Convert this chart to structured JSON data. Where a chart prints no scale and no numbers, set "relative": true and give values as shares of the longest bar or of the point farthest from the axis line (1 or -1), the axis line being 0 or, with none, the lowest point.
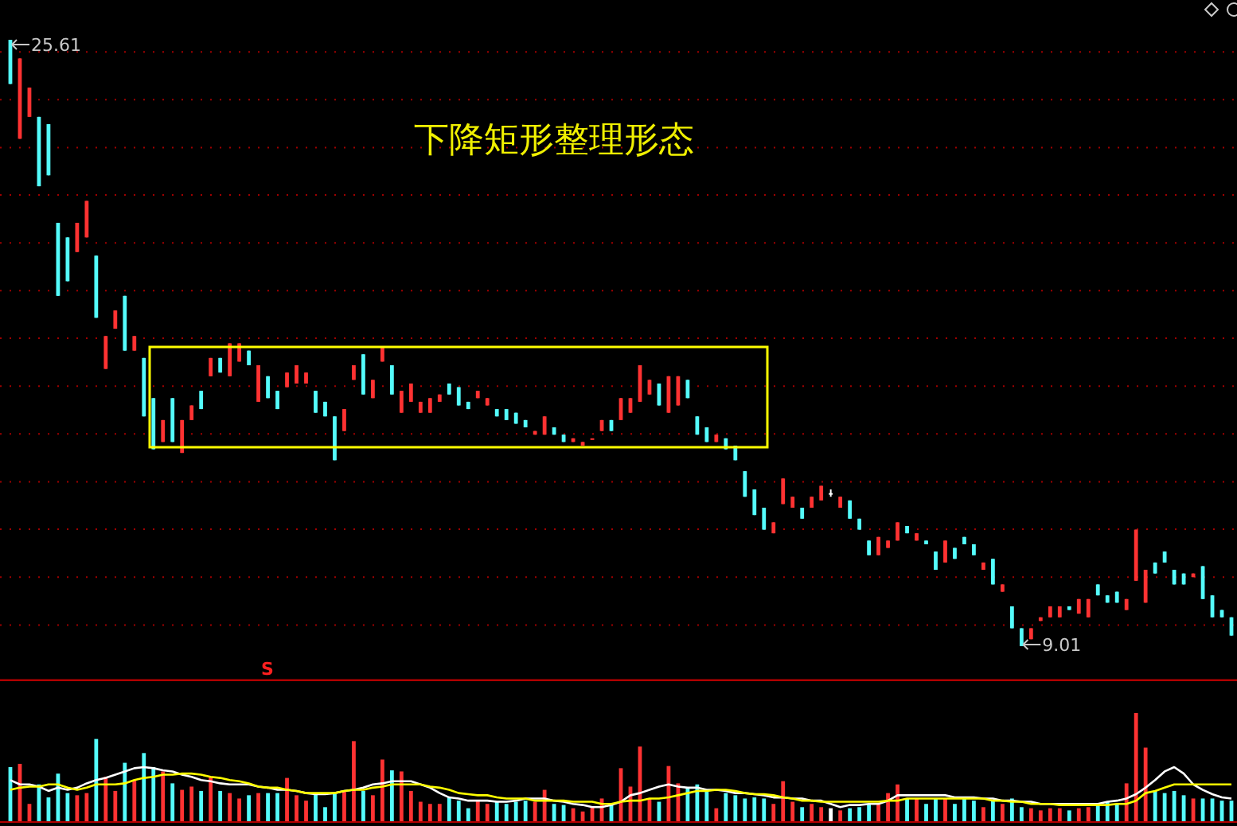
{
  "chart_data": [
    {
      "type": "candlestick",
      "title": "下降矩形整理形态",
      "categories": [
        null,
        null,
        null,
        null,
        null,
        null,
        null,
        null,
        null,
        null,
        null,
        null,
        null,
        null,
        null,
        null,
        null,
        null,
        null,
        null,
        null,
        null,
        null,
        null,
        null,
        null,
        null,
        null,
        null,
        null,
        null,
        null,
        null,
        null,
        null,
        null,
        null,
        null,
        null,
        null,
        null,
        null,
        null,
        null,
        null,
        null,
        null,
        null,
        null,
        null,
        null,
        null,
        null,
        null,
        null,
        null,
        null,
        null,
        null,
        null,
        null,
        null,
        null,
        null,
        null,
        null,
        null,
        null,
        null,
        null,
        null,
        null,
        null,
        null,
        null,
        null,
        null,
        null,
        null,
        null,
        null,
        null,
        null,
        null,
        null,
        null,
        null,
        null,
        null,
        null,
        null,
        null,
        null,
        null,
        null,
        null,
        null,
        null,
        null,
        null,
        null,
        null,
        null,
        null,
        null,
        null,
        null,
        null,
        null,
        null,
        null,
        null,
        null,
        null,
        null,
        null,
        null,
        null,
        null,
        null,
        null,
        null,
        null,
        null,
        null,
        null,
        null,
        null,
        null
      ],
      "ohlc": [
        [
          25.61,
          25.61,
          24.4,
          24.4
        ],
        [
          22.9,
          25.1,
          22.9,
          25.1
        ],
        [
          23.5,
          24.3,
          23.5,
          24.3
        ],
        [
          23.5,
          23.5,
          21.6,
          21.6
        ],
        [
          23.3,
          23.3,
          21.9,
          21.9
        ],
        [
          20.6,
          20.6,
          18.6,
          18.6
        ],
        [
          20.2,
          20.2,
          19.0,
          19.0
        ],
        [
          19.8,
          20.6,
          19.8,
          20.6
        ],
        [
          20.2,
          21.2,
          20.2,
          21.2
        ],
        [
          19.7,
          19.7,
          18.0,
          18.0
        ],
        [
          16.6,
          17.5,
          16.6,
          17.5
        ],
        [
          17.7,
          18.2,
          17.7,
          18.2
        ],
        [
          18.6,
          18.6,
          17.1,
          17.1
        ],
        [
          17.1,
          17.5,
          17.1,
          17.5
        ],
        [
          16.9,
          16.9,
          15.3,
          15.3
        ],
        [
          15.8,
          15.8,
          14.4,
          14.4
        ],
        [
          14.6,
          15.2,
          14.6,
          15.2
        ],
        [
          15.8,
          15.8,
          14.6,
          14.6
        ],
        [
          14.3,
          15.2,
          14.3,
          15.2
        ],
        [
          15.2,
          15.6,
          15.2,
          15.6
        ],
        [
          16.0,
          16.0,
          15.5,
          15.5
        ],
        [
          16.4,
          16.9,
          16.4,
          16.9
        ],
        [
          16.9,
          16.9,
          16.5,
          16.5
        ],
        [
          16.4,
          17.3,
          16.4,
          17.3
        ],
        [
          16.8,
          17.3,
          16.8,
          17.3
        ],
        [
          17.1,
          17.1,
          16.7,
          16.7
        ],
        [
          15.7,
          16.7,
          15.7,
          16.7
        ],
        [
          16.4,
          16.4,
          15.8,
          15.8
        ],
        [
          16.0,
          16.0,
          15.5,
          15.5
        ],
        [
          16.1,
          16.5,
          16.1,
          16.5
        ],
        [
          16.2,
          16.7,
          16.2,
          16.7
        ],
        [
          16.2,
          16.5,
          16.2,
          16.5
        ],
        [
          16.0,
          16.0,
          15.4,
          15.4
        ],
        [
          15.7,
          15.7,
          15.3,
          15.3
        ],
        [
          15.3,
          15.3,
          14.1,
          14.1
        ],
        [
          14.9,
          15.5,
          14.9,
          15.5
        ],
        [
          16.3,
          16.7,
          16.3,
          16.7
        ],
        [
          17.0,
          17.0,
          15.9,
          15.9
        ],
        [
          15.8,
          16.3,
          15.8,
          16.3
        ],
        [
          16.8,
          17.2,
          16.8,
          17.2
        ],
        [
          16.7,
          16.7,
          15.9,
          15.9
        ],
        [
          15.4,
          16.0,
          15.4,
          16.0
        ],
        [
          15.7,
          16.2,
          15.7,
          16.2
        ],
        [
          15.4,
          15.7,
          15.4,
          15.7
        ],
        [
          15.4,
          15.8,
          15.4,
          15.8
        ],
        [
          15.7,
          15.9,
          15.7,
          15.9
        ],
        [
          16.2,
          16.2,
          15.9,
          15.9
        ],
        [
          16.1,
          16.1,
          15.6,
          15.6
        ],
        [
          15.7,
          15.7,
          15.5,
          15.5
        ],
        [
          15.8,
          16.0,
          15.8,
          16.0
        ],
        [
          15.6,
          15.8,
          15.6,
          15.8
        ],
        [
          15.5,
          15.5,
          15.3,
          15.3
        ],
        [
          15.5,
          15.5,
          15.2,
          15.2
        ],
        [
          15.4,
          15.4,
          15.1,
          15.1
        ],
        [
          15.2,
          15.2,
          15.0,
          15.0
        ],
        [
          14.8,
          14.9,
          14.8,
          14.9
        ],
        [
          14.8,
          15.3,
          14.8,
          15.3
        ],
        [
          15.0,
          15.0,
          14.8,
          14.8
        ],
        [
          14.8,
          14.8,
          14.6,
          14.6
        ],
        [
          14.6,
          14.7,
          14.6,
          14.7
        ],
        [
          14.5,
          14.6,
          14.5,
          14.6
        ],
        [
          14.7,
          14.7,
          14.7,
          14.7
        ],
        [
          14.9,
          15.2,
          14.9,
          15.2
        ],
        [
          15.2,
          15.2,
          14.9,
          14.9
        ],
        [
          15.2,
          15.8,
          15.2,
          15.8
        ],
        [
          15.4,
          15.8,
          15.4,
          15.8
        ],
        [
          15.7,
          16.7,
          15.7,
          16.7
        ],
        [
          15.9,
          16.3,
          15.9,
          16.3
        ],
        [
          16.2,
          16.2,
          15.6,
          15.6
        ],
        [
          15.4,
          16.4,
          15.4,
          16.4
        ],
        [
          15.6,
          16.4,
          15.6,
          16.4
        ],
        [
          16.3,
          16.3,
          15.8,
          15.8
        ],
        [
          15.3,
          15.3,
          14.8,
          14.8
        ],
        [
          15.0,
          15.0,
          14.6,
          14.6
        ],
        [
          14.6,
          14.8,
          14.6,
          14.8
        ],
        [
          14.7,
          14.7,
          14.4,
          14.4
        ],
        [
          14.5,
          14.5,
          14.1,
          14.1
        ],
        [
          13.8,
          13.8,
          13.1,
          13.1
        ],
        [
          13.3,
          13.3,
          12.6,
          12.6
        ],
        [
          12.8,
          12.8,
          12.2,
          12.2
        ],
        [
          12.1,
          12.4,
          12.1,
          12.4
        ],
        [
          12.9,
          13.6,
          12.9,
          13.6
        ],
        [
          12.8,
          13.1,
          12.8,
          13.1
        ],
        [
          12.8,
          12.8,
          12.5,
          12.5
        ],
        [
          12.8,
          13.1,
          12.8,
          13.1
        ],
        [
          13.0,
          13.4,
          13.0,
          13.4
        ],
        [
          13.2,
          13.3,
          13.1,
          13.2
        ],
        [
          12.8,
          13.1,
          12.8,
          13.1
        ],
        [
          13.0,
          13.0,
          12.5,
          12.5
        ],
        [
          12.5,
          12.5,
          12.2,
          12.2
        ],
        [
          11.9,
          11.9,
          11.5,
          11.5
        ],
        [
          11.5,
          12.0,
          11.5,
          12.0
        ],
        [
          11.7,
          11.9,
          11.7,
          11.9
        ],
        [
          11.9,
          12.4,
          11.9,
          12.4
        ],
        [
          12.3,
          12.3,
          12.1,
          12.1
        ],
        [
          11.9,
          12.1,
          11.9,
          12.1
        ],
        [
          11.9,
          11.9,
          11.8,
          11.8
        ],
        [
          11.6,
          11.6,
          11.1,
          11.1
        ],
        [
          11.3,
          11.9,
          11.3,
          11.9
        ],
        [
          11.7,
          11.7,
          11.4,
          11.4
        ],
        [
          12.0,
          12.0,
          11.8,
          11.8
        ],
        [
          11.8,
          11.8,
          11.5,
          11.5
        ],
        [
          11.1,
          11.3,
          11.1,
          11.3
        ],
        [
          11.4,
          11.4,
          10.7,
          10.7
        ],
        [
          10.5,
          10.7,
          10.5,
          10.7
        ],
        [
          10.1,
          10.1,
          9.5,
          9.5
        ],
        [
          9.5,
          9.5,
          9.01,
          9.01
        ],
        [
          9.2,
          9.5,
          9.2,
          9.5
        ],
        [
          9.7,
          9.8,
          9.7,
          9.8
        ],
        [
          9.8,
          10.1,
          9.8,
          10.1
        ],
        [
          9.8,
          10.1,
          9.8,
          10.1
        ],
        [
          10.1,
          10.1,
          10.0,
          10.0
        ],
        [
          9.9,
          10.3,
          9.9,
          10.3
        ],
        [
          9.8,
          10.3,
          9.8,
          10.3
        ],
        [
          10.7,
          10.7,
          10.4,
          10.4
        ],
        [
          10.4,
          10.4,
          10.2,
          10.2
        ],
        [
          10.5,
          10.5,
          10.2,
          10.2
        ],
        [
          10.0,
          10.3,
          10.0,
          10.3
        ],
        [
          10.8,
          12.2,
          10.8,
          12.2
        ],
        [
          10.2,
          11.1,
          10.2,
          11.1
        ],
        [
          11.3,
          11.3,
          11.0,
          11.0
        ],
        [
          11.6,
          11.6,
          11.3,
          11.3
        ],
        [
          11.1,
          11.1,
          10.7,
          10.7
        ],
        [
          11.0,
          11.0,
          10.7,
          10.7
        ],
        [
          10.9,
          11.0,
          10.9,
          11.0
        ],
        [
          11.2,
          11.2,
          10.3,
          10.3
        ],
        [
          10.4,
          10.4,
          9.8,
          9.8
        ],
        [
          10.0,
          10.0,
          9.8,
          9.8
        ],
        [
          9.8,
          9.8,
          9.3,
          9.3
        ]
      ],
      "colors": [
        "#54fcfc",
        "#ff3232",
        "#ff3232",
        "#54fcfc",
        "#54fcfc",
        "#54fcfc",
        "#54fcfc",
        "#ff3232",
        "#ff3232",
        "#54fcfc",
        "#ff3232",
        "#ff3232",
        "#54fcfc",
        "#ff3232",
        "#54fcfc",
        "#54fcfc",
        "#ff3232",
        "#54fcfc",
        "#ff3232",
        "#ff3232",
        "#54fcfc",
        "#ff3232",
        "#54fcfc",
        "#ff3232",
        "#ff3232",
        "#54fcfc",
        "#ff3232",
        "#54fcfc",
        "#54fcfc",
        "#ff3232",
        "#ff3232",
        "#ff3232",
        "#54fcfc",
        "#54fcfc",
        "#54fcfc",
        "#ff3232",
        "#ff3232",
        "#54fcfc",
        "#ff3232",
        "#ff3232",
        "#54fcfc",
        "#ff3232",
        "#ff3232",
        "#ff3232",
        "#ff3232",
        "#ff3232",
        "#54fcfc",
        "#54fcfc",
        "#54fcfc",
        "#ff3232",
        "#ff3232",
        "#54fcfc",
        "#54fcfc",
        "#54fcfc",
        "#54fcfc",
        "#ff3232",
        "#ff3232",
        "#54fcfc",
        "#54fcfc",
        "#ff3232",
        "#ff3232",
        "#ff3232",
        "#ff3232",
        "#54fcfc",
        "#ff3232",
        "#ff3232",
        "#ff3232",
        "#ff3232",
        "#54fcfc",
        "#ff3232",
        "#ff3232",
        "#54fcfc",
        "#54fcfc",
        "#54fcfc",
        "#ff3232",
        "#54fcfc",
        "#54fcfc",
        "#54fcfc",
        "#54fcfc",
        "#54fcfc",
        "#ff3232",
        "#ff3232",
        "#ff3232",
        "#54fcfc",
        "#ff3232",
        "#ff3232",
        "#ffffff",
        "#ff3232",
        "#54fcfc",
        "#54fcfc",
        "#54fcfc",
        "#ff3232",
        "#ff3232",
        "#ff3232",
        "#54fcfc",
        "#ff3232",
        "#54fcfc",
        "#54fcfc",
        "#ff3232",
        "#54fcfc",
        "#54fcfc",
        "#54fcfc",
        "#ff3232",
        "#54fcfc",
        "#ff3232",
        "#54fcfc",
        "#54fcfc",
        "#ff3232",
        "#ff3232",
        "#ff3232",
        "#ff3232",
        "#54fcfc",
        "#ff3232",
        "#ff3232",
        "#54fcfc",
        "#54fcfc",
        "#54fcfc",
        "#ff3232",
        "#ff3232",
        "#ff3232",
        "#54fcfc",
        "#54fcfc",
        "#54fcfc",
        "#54fcfc",
        "#ff3232",
        "#54fcfc",
        "#54fcfc",
        "#54fcfc",
        "#54fcfc"
      ],
      "yticks": [
        {
          "value": 25.28,
          "label": null
        },
        {
          "value": 23.97,
          "label": null
        },
        {
          "value": 22.66,
          "label": null
        },
        {
          "value": 21.36,
          "label": null
        },
        {
          "value": 20.05,
          "label": null
        },
        {
          "value": 18.74,
          "label": null
        },
        {
          "value": 17.44,
          "label": null
        },
        {
          "value": 16.13,
          "label": null
        },
        {
          "value": 14.82,
          "label": null
        },
        {
          "value": 13.51,
          "label": null
        },
        {
          "value": 12.21,
          "label": null
        },
        {
          "value": 10.9,
          "label": null
        },
        {
          "value": 9.59,
          "label": null
        }
      ],
      "grid": "y",
      "annotations": [
        "25.61",
        "9.01",
        "S"
      ]
    },
    {
      "type": "bar",
      "relative": true,
      "categories": [
        null,
        null,
        null,
        null,
        null,
        null,
        null,
        null,
        null,
        null,
        null,
        null,
        null,
        null,
        null,
        null,
        null,
        null,
        null,
        null,
        null,
        null,
        null,
        null,
        null,
        null,
        null,
        null,
        null,
        null,
        null,
        null,
        null,
        null,
        null,
        null,
        null,
        null,
        null,
        null,
        null,
        null,
        null,
        null,
        null,
        null,
        null,
        null,
        null,
        null,
        null,
        null,
        null,
        null,
        null,
        null,
        null,
        null,
        null,
        null,
        null,
        null,
        null,
        null,
        null,
        null,
        null,
        null,
        null,
        null,
        null,
        null,
        null,
        null,
        null,
        null,
        null,
        null,
        null,
        null,
        null,
        null,
        null,
        null,
        null,
        null,
        null,
        null,
        null,
        null,
        null,
        null,
        null,
        null,
        null,
        null,
        null,
        null,
        null,
        null,
        null,
        null,
        null,
        null,
        null,
        null,
        null,
        null,
        null,
        null,
        null,
        null,
        null,
        null,
        null,
        null,
        null,
        null,
        null,
        null,
        null,
        null,
        null,
        null,
        null,
        null,
        null,
        null,
        null
      ],
      "series": [
        {
          "type": "bar",
          "colors": [
            "#54fcfc",
            "#ff3232",
            "#ff3232",
            "#54fcfc",
            "#54fcfc",
            "#54fcfc",
            "#54fcfc",
            "#ff3232",
            "#ff3232",
            "#54fcfc",
            "#ff3232",
            "#ff3232",
            "#54fcfc",
            "#ff3232",
            "#54fcfc",
            "#54fcfc",
            "#ff3232",
            "#54fcfc",
            "#ff3232",
            "#ff3232",
            "#54fcfc",
            "#ff3232",
            "#54fcfc",
            "#ff3232",
            "#ff3232",
            "#54fcfc",
            "#ff3232",
            "#54fcfc",
            "#54fcfc",
            "#ff3232",
            "#ff3232",
            "#ff3232",
            "#54fcfc",
            "#54fcfc",
            "#54fcfc",
            "#ff3232",
            "#ff3232",
            "#54fcfc",
            "#ff3232",
            "#ff3232",
            "#54fcfc",
            "#ff3232",
            "#ff3232",
            "#ff3232",
            "#ff3232",
            "#ff3232",
            "#54fcfc",
            "#54fcfc",
            "#54fcfc",
            "#ff3232",
            "#ff3232",
            "#54fcfc",
            "#54fcfc",
            "#54fcfc",
            "#54fcfc",
            "#ff3232",
            "#ff3232",
            "#54fcfc",
            "#54fcfc",
            "#ff3232",
            "#ff3232",
            "#ff3232",
            "#ff3232",
            "#54fcfc",
            "#ff3232",
            "#ff3232",
            "#ff3232",
            "#ff3232",
            "#54fcfc",
            "#ff3232",
            "#ff3232",
            "#54fcfc",
            "#54fcfc",
            "#54fcfc",
            "#ff3232",
            "#54fcfc",
            "#54fcfc",
            "#54fcfc",
            "#54fcfc",
            "#54fcfc",
            "#ff3232",
            "#ff3232",
            "#ff3232",
            "#54fcfc",
            "#ff3232",
            "#ff3232",
            "#ffffff",
            "#ff3232",
            "#54fcfc",
            "#54fcfc",
            "#54fcfc",
            "#ff3232",
            "#ff3232",
            "#ff3232",
            "#54fcfc",
            "#ff3232",
            "#54fcfc",
            "#54fcfc",
            "#ff3232",
            "#54fcfc",
            "#54fcfc",
            "#54fcfc",
            "#ff3232",
            "#54fcfc",
            "#ff3232",
            "#54fcfc",
            "#54fcfc",
            "#ff3232",
            "#ff3232",
            "#ff3232",
            "#ff3232",
            "#54fcfc",
            "#ff3232",
            "#ff3232",
            "#54fcfc",
            "#54fcfc",
            "#54fcfc",
            "#ff3232",
            "#ff3232",
            "#ff3232",
            "#54fcfc",
            "#54fcfc",
            "#54fcfc",
            "#54fcfc",
            "#ff3232",
            "#54fcfc",
            "#54fcfc",
            "#54fcfc",
            "#54fcfc"
          ],
          "values": [
            0.5,
            0.53,
            0.16,
            0.34,
            0.22,
            0.44,
            0.26,
            0.24,
            0.26,
            0.76,
            0.41,
            0.28,
            0.54,
            0.38,
            0.63,
            0.5,
            0.46,
            0.35,
            0.29,
            0.32,
            0.28,
            0.41,
            0.28,
            0.26,
            0.21,
            0.24,
            0.26,
            0.26,
            0.26,
            0.4,
            0.24,
            0.19,
            0.26,
            0.13,
            0.25,
            0.28,
            0.74,
            0.28,
            0.24,
            0.57,
            0.47,
            0.46,
            0.28,
            0.18,
            0.16,
            0.16,
            0.22,
            0.19,
            0.12,
            0.19,
            0.16,
            0.18,
            0.16,
            0.18,
            0.19,
            0.18,
            0.29,
            0.16,
            0.15,
            0.12,
            0.09,
            0.13,
            0.21,
            0.16,
            0.49,
            0.32,
            0.69,
            0.21,
            0.18,
            0.51,
            0.35,
            0.31,
            0.34,
            0.28,
            0.12,
            0.26,
            0.24,
            0.21,
            0.22,
            0.21,
            0.16,
            0.37,
            0.18,
            0.13,
            0.16,
            0.13,
            0.12,
            0.1,
            0.12,
            0.13,
            0.16,
            0.16,
            0.26,
            0.34,
            0.21,
            0.21,
            0.16,
            0.21,
            0.21,
            0.16,
            0.21,
            0.19,
            0.13,
            0.19,
            0.16,
            0.21,
            0.13,
            0.12,
            0.1,
            0.12,
            0.12,
            0.1,
            0.12,
            0.13,
            0.16,
            0.18,
            0.16,
            0.35,
            1,
            0.68,
            0.28,
            0.26,
            0.28,
            0.24,
            0.21,
            0.21,
            0.21,
            0.19,
            0.19
          ]
        },
        {
          "type": "line",
          "color": "#ffffff",
          "values": [
            0.38,
            0.34,
            0.34,
            0.32,
            0.28,
            0.31,
            0.29,
            0.31,
            0.35,
            0.38,
            0.4,
            0.43,
            0.46,
            0.49,
            0.5,
            0.49,
            0.47,
            0.46,
            0.43,
            0.41,
            0.38,
            0.37,
            0.35,
            0.34,
            0.34,
            0.34,
            0.32,
            0.31,
            0.29,
            0.29,
            0.28,
            0.26,
            0.25,
            0.25,
            0.26,
            0.28,
            0.29,
            0.31,
            0.34,
            0.35,
            0.37,
            0.37,
            0.37,
            0.34,
            0.31,
            0.26,
            0.22,
            0.21,
            0.19,
            0.19,
            0.19,
            0.18,
            0.18,
            0.19,
            0.21,
            0.21,
            0.21,
            0.19,
            0.18,
            0.16,
            0.15,
            0.13,
            0.13,
            0.15,
            0.18,
            0.24,
            0.26,
            0.29,
            0.32,
            0.34,
            0.32,
            0.31,
            0.31,
            0.29,
            0.29,
            0.28,
            0.26,
            0.26,
            0.25,
            0.24,
            0.22,
            0.22,
            0.21,
            0.21,
            0.19,
            0.19,
            0.16,
            0.13,
            0.15,
            0.15,
            0.16,
            0.16,
            0.19,
            0.24,
            0.24,
            0.24,
            0.24,
            0.24,
            0.24,
            0.22,
            0.22,
            0.22,
            0.21,
            0.21,
            0.19,
            0.19,
            0.18,
            0.18,
            0.16,
            0.16,
            0.16,
            0.16,
            0.16,
            0.16,
            0.16,
            0.18,
            0.19,
            0.21,
            0.25,
            0.31,
            0.38,
            0.46,
            0.5,
            0.44,
            0.34,
            0.29,
            0.25,
            0.22,
            0.21
          ]
        },
        {
          "type": "line",
          "color": "#ffff00",
          "values": [
            0.29,
            0.31,
            0.32,
            0.32,
            0.34,
            0.34,
            0.31,
            0.29,
            0.31,
            0.34,
            0.34,
            0.34,
            0.35,
            0.38,
            0.4,
            0.41,
            0.43,
            0.43,
            0.44,
            0.44,
            0.43,
            0.41,
            0.4,
            0.38,
            0.37,
            0.35,
            0.32,
            0.31,
            0.31,
            0.29,
            0.28,
            0.26,
            0.26,
            0.26,
            0.26,
            0.28,
            0.29,
            0.29,
            0.31,
            0.32,
            0.34,
            0.34,
            0.34,
            0.34,
            0.32,
            0.31,
            0.29,
            0.26,
            0.25,
            0.24,
            0.24,
            0.22,
            0.21,
            0.21,
            0.21,
            0.19,
            0.19,
            0.19,
            0.19,
            0.18,
            0.18,
            0.18,
            0.16,
            0.16,
            0.18,
            0.19,
            0.19,
            0.21,
            0.21,
            0.22,
            0.24,
            0.26,
            0.28,
            0.28,
            0.29,
            0.29,
            0.28,
            0.26,
            0.25,
            0.25,
            0.24,
            0.22,
            0.21,
            0.19,
            0.19,
            0.18,
            0.18,
            0.18,
            0.18,
            0.18,
            0.18,
            0.18,
            0.19,
            0.19,
            0.21,
            0.21,
            0.21,
            0.21,
            0.21,
            0.21,
            0.21,
            0.21,
            0.21,
            0.19,
            0.19,
            0.18,
            0.18,
            0.16,
            0.16,
            0.16,
            0.15,
            0.15,
            0.15,
            0.15,
            0.15,
            0.15,
            0.16,
            0.16,
            0.19,
            0.26,
            0.28,
            0.31,
            0.34,
            0.34,
            0.34,
            0.34,
            0.34,
            0.34,
            0.34
          ]
        }
      ]
    }
  ]
}
